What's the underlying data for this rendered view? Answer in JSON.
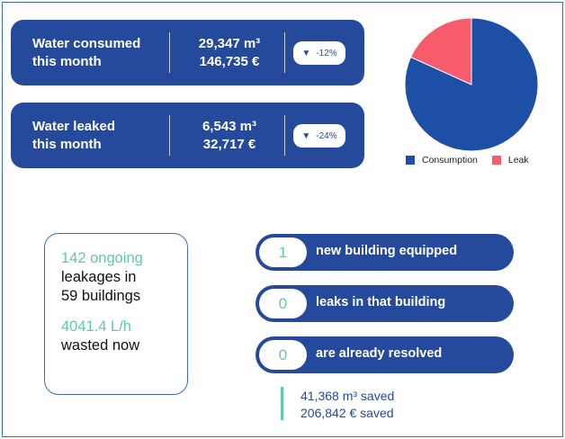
{
  "colors": {
    "primary": "#254a9c",
    "accent": "#5fcba0",
    "consumption": "#1e4fa6",
    "leak": "#f65c6c"
  },
  "stats": [
    {
      "label_line1": "Water consumed",
      "label_line2": "this month",
      "volume": "29,347 m³",
      "cost": "146,735 €",
      "delta": "-12%",
      "delta_icon": "down-triangle-icon"
    },
    {
      "label_line1": "Water leaked",
      "label_line2": "this month",
      "volume": "6,543 m³",
      "cost": "32,717 €",
      "delta": "-24%",
      "delta_icon": "down-triangle-icon"
    }
  ],
  "chart_data": {
    "type": "pie",
    "labels": [
      "Consumption",
      "Leak"
    ],
    "values": [
      29347,
      6543
    ],
    "colors": [
      "#1e4fa6",
      "#f65c6c"
    ],
    "legend": "bottom"
  },
  "leak_summary": {
    "ongoing": "142 ongoing",
    "line2": "leakages in",
    "line3": "59 buildings",
    "flow": "4041.4 L/h",
    "line5": "wasted now"
  },
  "buildings": [
    {
      "count": "1",
      "text": "new building equipped"
    },
    {
      "count": "0",
      "text": "leaks in that building"
    },
    {
      "count": "0",
      "text": "are already resolved"
    }
  ],
  "savings": {
    "volume": "41,368 m³ saved",
    "cost": "206,842 € saved"
  }
}
